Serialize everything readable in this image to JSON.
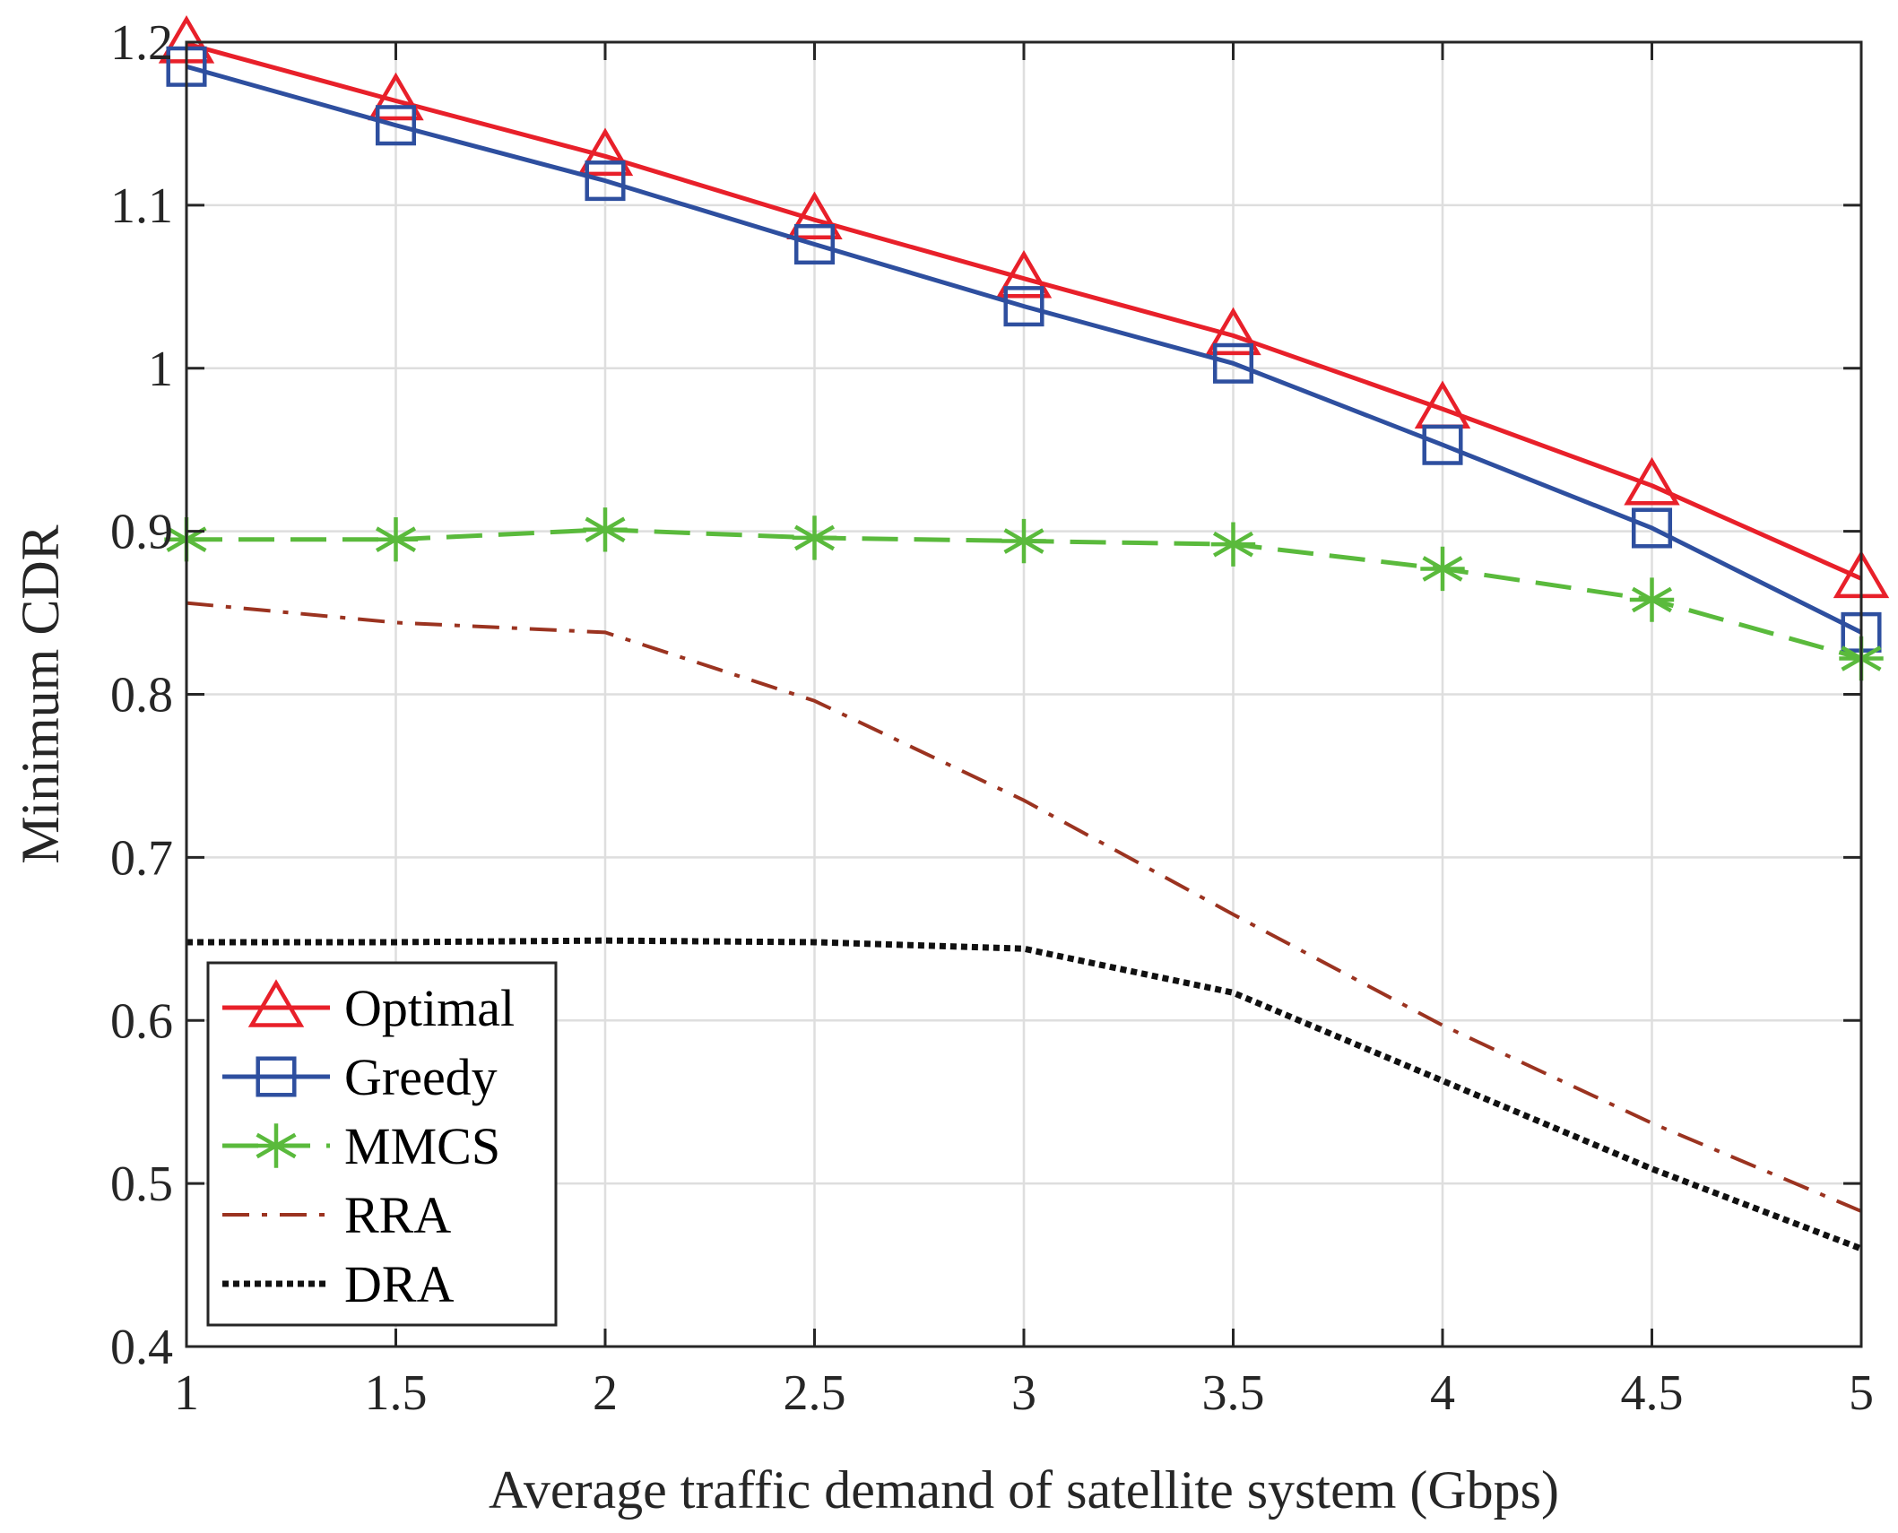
{
  "chart_data": {
    "type": "line",
    "title": "",
    "xlabel": "Average traffic demand of satellite system (Gbps)",
    "ylabel": "Minimum CDR",
    "xlim": [
      1,
      5
    ],
    "ylim": [
      0.4,
      1.2
    ],
    "x_ticks": [
      "1",
      "1.5",
      "2",
      "2.5",
      "3",
      "3.5",
      "4",
      "4.5",
      "5"
    ],
    "y_ticks": [
      "0.4",
      "0.5",
      "0.6",
      "0.7",
      "0.8",
      "0.9",
      "1",
      "1.1",
      "1.2"
    ],
    "grid": true,
    "legend_position": "bottom-left",
    "x": [
      1,
      1.5,
      2,
      2.5,
      3,
      3.5,
      4,
      4.5,
      5
    ],
    "series": [
      {
        "name": "Optimal",
        "color": "#e8202a",
        "marker": "triangle",
        "dash": "solid",
        "values": [
          1.199,
          1.164,
          1.13,
          1.091,
          1.055,
          1.02,
          0.975,
          0.928,
          0.871
        ]
      },
      {
        "name": "Greedy",
        "color": "#2e4f9f",
        "marker": "square",
        "dash": "solid",
        "values": [
          1.185,
          1.149,
          1.115,
          1.076,
          1.038,
          1.003,
          0.953,
          0.902,
          0.838
        ]
      },
      {
        "name": "MMCS",
        "color": "#5aba3c",
        "marker": "asterisk",
        "dash": "dashed",
        "values": [
          0.895,
          0.895,
          0.901,
          0.896,
          0.894,
          0.892,
          0.877,
          0.858,
          0.822
        ]
      },
      {
        "name": "RRA",
        "color": "#9b3320",
        "marker": "none",
        "dash": "dashdot",
        "values": [
          0.856,
          0.844,
          0.838,
          0.796,
          0.735,
          0.665,
          0.597,
          0.537,
          0.483
        ]
      },
      {
        "name": "DRA",
        "color": "#111111",
        "marker": "none",
        "dash": "dotted",
        "values": [
          0.648,
          0.648,
          0.649,
          0.648,
          0.644,
          0.617,
          0.563,
          0.509,
          0.46
        ]
      }
    ]
  }
}
